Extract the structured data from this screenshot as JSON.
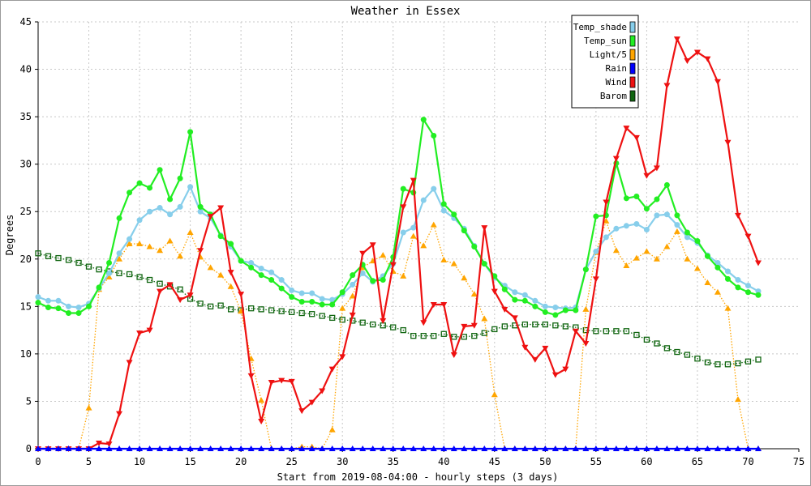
{
  "chart_data": {
    "type": "line",
    "title": "Weather in Essex",
    "xlabel": "Start from 2019-08-04:00 - hourly steps (3 days)",
    "ylabel": "Degrees",
    "xlim": [
      0,
      75
    ],
    "ylim": [
      0,
      45
    ],
    "x_ticks": [
      0,
      5,
      10,
      15,
      20,
      25,
      30,
      35,
      40,
      45,
      50,
      55,
      60,
      65,
      70,
      75
    ],
    "y_ticks": [
      0,
      5,
      10,
      15,
      20,
      25,
      30,
      35,
      40,
      45
    ],
    "grid": true,
    "legend_position": "top-right",
    "x": [
      0,
      1,
      2,
      3,
      4,
      5,
      6,
      7,
      8,
      9,
      10,
      11,
      12,
      13,
      14,
      15,
      16,
      17,
      18,
      19,
      20,
      21,
      22,
      23,
      24,
      25,
      26,
      27,
      28,
      29,
      30,
      31,
      32,
      33,
      34,
      35,
      36,
      37,
      38,
      39,
      40,
      41,
      42,
      43,
      44,
      45,
      46,
      47,
      48,
      49,
      50,
      51,
      52,
      53,
      54,
      55,
      56,
      57,
      58,
      59,
      60,
      61,
      62,
      63,
      64,
      65,
      66,
      67,
      68,
      69,
      70,
      71
    ],
    "series": [
      {
        "name": "Temp_shade",
        "color": "#87ceeb",
        "line_style": "solid",
        "marker": "dot",
        "values": [
          16.0,
          15.6,
          15.6,
          15.0,
          14.9,
          15.3,
          16.9,
          18.5,
          20.6,
          22.1,
          24.1,
          25.0,
          25.4,
          24.7,
          25.5,
          27.6,
          25.0,
          24.3,
          22.5,
          21.3,
          19.8,
          19.6,
          19.0,
          18.6,
          17.8,
          16.7,
          16.4,
          16.4,
          15.8,
          15.7,
          16.3,
          17.3,
          18.5,
          17.6,
          18.2,
          19.5,
          22.8,
          23.3,
          26.2,
          27.4,
          25.1,
          24.3,
          23.2,
          21.4,
          19.5,
          18.0,
          17.2,
          16.5,
          16.2,
          15.6,
          15.0,
          14.9,
          14.8,
          14.9,
          18.9,
          20.8,
          22.3,
          23.2,
          23.5,
          23.7,
          23.1,
          24.6,
          24.7,
          23.6,
          22.3,
          21.7,
          20.4,
          19.6,
          18.7,
          17.8,
          17.2,
          16.6
        ]
      },
      {
        "name": "Temp_sun",
        "color": "#22ee22",
        "line_style": "solid",
        "marker": "dot",
        "values": [
          15.4,
          14.9,
          14.8,
          14.3,
          14.3,
          15.0,
          17.0,
          19.6,
          24.3,
          27.0,
          28.0,
          27.5,
          29.4,
          26.3,
          28.5,
          33.4,
          25.5,
          24.7,
          22.4,
          21.6,
          19.8,
          19.1,
          18.3,
          17.8,
          16.9,
          16.0,
          15.5,
          15.5,
          15.2,
          15.2,
          16.5,
          18.3,
          19.4,
          17.7,
          17.8,
          20.2,
          27.4,
          27.0,
          34.7,
          33.0,
          25.8,
          24.7,
          23.0,
          21.3,
          19.5,
          18.2,
          16.8,
          15.7,
          15.6,
          15.0,
          14.4,
          14.1,
          14.6,
          14.6,
          18.9,
          24.5,
          24.6,
          30.1,
          26.4,
          26.6,
          25.3,
          26.3,
          27.8,
          24.6,
          22.8,
          21.9,
          20.3,
          19.1,
          17.9,
          17.0,
          16.5,
          16.2
        ]
      },
      {
        "name": "Light/5",
        "color": "#ffa500",
        "line_style": "dotted",
        "marker": "triangle",
        "values": [
          0,
          0,
          0,
          0,
          0,
          4.3,
          16.8,
          18.1,
          20.0,
          21.6,
          21.6,
          21.3,
          20.9,
          21.9,
          20.3,
          22.8,
          20.2,
          19.1,
          18.3,
          17.1,
          14.5,
          9.5,
          5.1,
          0,
          0,
          0,
          0.2,
          0.2,
          0,
          2.0,
          14.8,
          16.1,
          19.1,
          19.8,
          20.4,
          18.7,
          18.2,
          22.4,
          21.4,
          23.6,
          19.9,
          19.5,
          18.0,
          16.3,
          13.7,
          5.7,
          0,
          0,
          0,
          0,
          0,
          0,
          0,
          0,
          14.7,
          20.7,
          24.0,
          20.9,
          19.3,
          20.1,
          20.8,
          20.0,
          21.3,
          22.9,
          20.0,
          19.0,
          17.5,
          16.5,
          14.8,
          5.2,
          0,
          0
        ]
      },
      {
        "name": "Rain",
        "color": "#0000ff",
        "line_style": "solid",
        "marker": "triangle",
        "values": [
          0,
          0,
          0,
          0,
          0,
          0,
          0,
          0,
          0,
          0,
          0,
          0,
          0,
          0,
          0,
          0,
          0,
          0,
          0,
          0,
          0,
          0,
          0,
          0,
          0,
          0,
          0,
          0,
          0,
          0,
          0,
          0,
          0,
          0,
          0,
          0,
          0,
          0,
          0,
          0,
          0,
          0,
          0,
          0,
          0,
          0,
          0,
          0,
          0,
          0,
          0,
          0,
          0,
          0,
          0,
          0,
          0,
          0,
          0,
          0,
          0,
          0,
          0,
          0,
          0,
          0,
          0,
          0,
          0,
          0,
          0,
          0
        ]
      },
      {
        "name": "Wind",
        "color": "#ee1111",
        "line_style": "solid",
        "marker": "triangle-down",
        "values": [
          0,
          0,
          0,
          0,
          0,
          0,
          0.6,
          0.5,
          3.7,
          9.1,
          12.2,
          12.5,
          16.6,
          17.3,
          15.7,
          16.2,
          20.9,
          24.5,
          25.4,
          18.6,
          16.3,
          7.7,
          2.9,
          7.0,
          7.2,
          7.1,
          4.0,
          4.9,
          6.1,
          8.4,
          9.7,
          14.1,
          20.6,
          21.5,
          13.5,
          19.4,
          25.5,
          28.3,
          13.3,
          15.2,
          15.2,
          9.9,
          12.9,
          13.0,
          23.3,
          16.6,
          14.7,
          13.8,
          10.7,
          9.4,
          10.6,
          7.8,
          8.4,
          12.4,
          11.1,
          17.9,
          26.0,
          30.6,
          33.8,
          32.8,
          28.8,
          29.6,
          38.3,
          43.2,
          40.9,
          41.8,
          41.1,
          38.7,
          32.3,
          24.6,
          22.4,
          19.6
        ]
      },
      {
        "name": "Barom",
        "color": "#116611",
        "line_style": "dotted",
        "marker": "square",
        "values": [
          20.6,
          20.3,
          20.1,
          19.9,
          19.6,
          19.2,
          18.9,
          18.7,
          18.5,
          18.4,
          18.1,
          17.8,
          17.4,
          17.1,
          16.8,
          15.8,
          15.3,
          15.0,
          15.1,
          14.7,
          14.6,
          14.8,
          14.7,
          14.6,
          14.5,
          14.4,
          14.3,
          14.2,
          14.0,
          13.8,
          13.6,
          13.5,
          13.3,
          13.1,
          13.0,
          12.8,
          12.5,
          11.9,
          11.9,
          11.9,
          12.1,
          11.8,
          11.8,
          11.9,
          12.2,
          12.6,
          12.9,
          13.0,
          13.1,
          13.1,
          13.1,
          13.0,
          12.9,
          12.8,
          12.5,
          12.4,
          12.4,
          12.4,
          12.4,
          12.0,
          11.5,
          11.1,
          10.6,
          10.2,
          9.9,
          9.5,
          9.1,
          8.9,
          8.9,
          9.0,
          9.2,
          9.4
        ]
      }
    ]
  }
}
